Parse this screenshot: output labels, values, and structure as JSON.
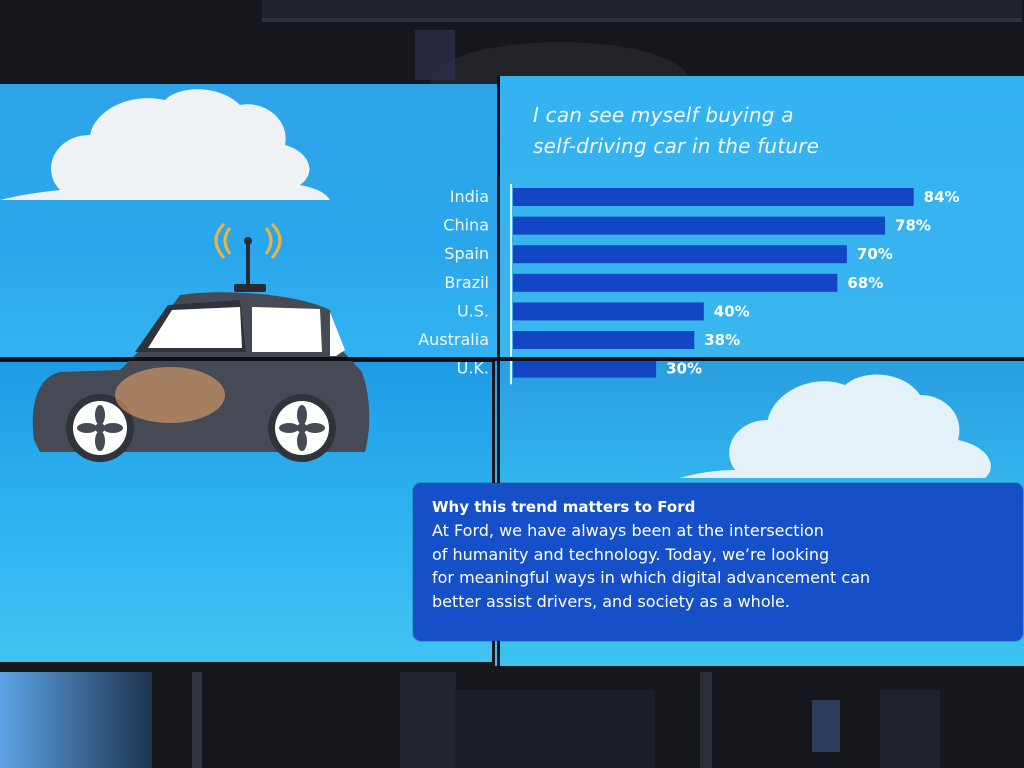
{
  "slide": {
    "title_lines": [
      "I can see myself buying a",
      "self-driving car in the future"
    ],
    "callout": {
      "heading": "Why this trend matters to Ford",
      "body_lines": [
        "At Ford, we have always been at the intersection",
        "of humanity and technology. Today, we’re looking",
        "for meaningful ways in which digital advancement can",
        "better assist drivers, and society as a whole."
      ]
    }
  },
  "chart_data": {
    "type": "bar",
    "orientation": "horizontal",
    "title": "I can see myself buying a self-driving car in the future",
    "categories": [
      "India",
      "China",
      "Spain",
      "Brazil",
      "U.S.",
      "Australia",
      "U.K."
    ],
    "values": [
      84,
      78,
      70,
      68,
      40,
      38,
      30
    ],
    "labels": [
      "84%",
      "78%",
      "70%",
      "68%",
      "40%",
      "38%",
      "30%"
    ],
    "unit": "%",
    "xlim": [
      0,
      100
    ],
    "grid": false,
    "legend": "none",
    "colors": {
      "bar": "#1346c4",
      "label": "#ffffff",
      "axis": "#e6f2fb"
    }
  },
  "icons": [
    "cloud-icon",
    "car-icon",
    "antenna-signal-icon"
  ]
}
